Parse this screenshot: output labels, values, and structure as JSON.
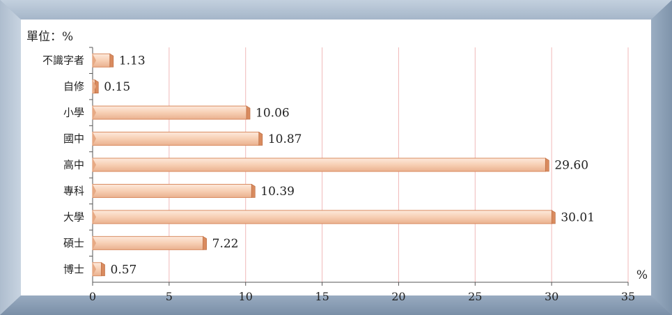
{
  "chart_data": {
    "type": "bar",
    "orientation": "horizontal",
    "unit_label": "單位：%",
    "axis_unit": "%",
    "categories": [
      "不識字者",
      "自修",
      "小學",
      "國中",
      "高中",
      "專科",
      "大學",
      "碩士",
      "博士"
    ],
    "values": [
      1.13,
      0.15,
      10.06,
      10.87,
      29.6,
      10.39,
      30.01,
      7.22,
      0.57
    ],
    "value_labels": [
      "1.13",
      "0.15",
      "10.06",
      "10.87",
      "29.60",
      "10.39",
      "30.01",
      "7.22",
      "0.57"
    ],
    "xlim": [
      0,
      35
    ],
    "xticks": [
      0,
      5,
      10,
      15,
      20,
      25,
      30,
      35
    ],
    "grid": true,
    "legend": "none",
    "colors": {
      "frame": "#9fb1c5",
      "plot_bg": "#ffffff",
      "bar_fill": "#f7cfb4",
      "bar_edge": "#d98b5f",
      "gridline": "#f0b8b8"
    }
  }
}
